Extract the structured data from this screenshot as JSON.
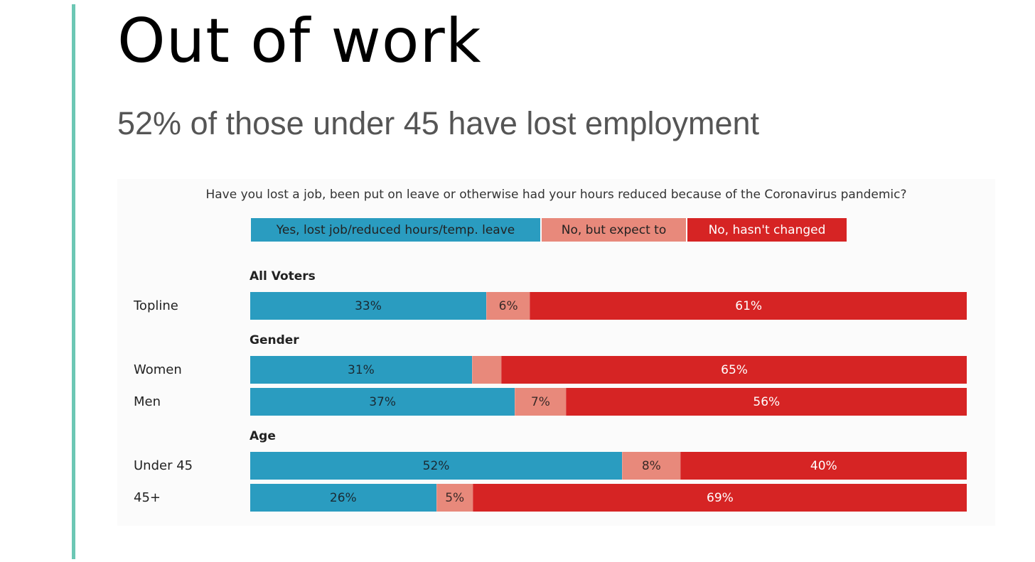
{
  "title": "Out of work",
  "subtitle": "52% of those under 45 have lost employment",
  "colors": {
    "accent_rule": "#6cc7b4",
    "yes": "#2a9cc0",
    "expect": "#e8897b",
    "no": "#d62424"
  },
  "chart_data": {
    "type": "bar",
    "orientation": "horizontal-stacked-100",
    "title": "Have you lost a job, been put on leave or otherwise had your hours reduced because of the Coronavirus pandemic?",
    "legend": [
      "Yes, lost job/reduced hours/temp. leave",
      "No, but expect to",
      "No, hasn't changed"
    ],
    "legend_placement": "top",
    "groups": [
      {
        "name": "All Voters",
        "rows": [
          {
            "label": "Topline",
            "values": [
              33,
              6,
              61
            ],
            "labels": [
              "33%",
              "6%",
              "61%"
            ]
          }
        ]
      },
      {
        "name": "Gender",
        "rows": [
          {
            "label": "Women",
            "values": [
              31,
              4,
              65
            ],
            "labels": [
              "31%",
              "",
              "65%"
            ]
          },
          {
            "label": "Men",
            "values": [
              37,
              7,
              56
            ],
            "labels": [
              "37%",
              "7%",
              "56%"
            ]
          }
        ]
      },
      {
        "name": "Age",
        "rows": [
          {
            "label": "Under 45",
            "values": [
              52,
              8,
              40
            ],
            "labels": [
              "52%",
              "8%",
              "40%"
            ]
          },
          {
            "label": "45+",
            "values": [
              26,
              5,
              69
            ],
            "labels": [
              "26%",
              "5%",
              "69%"
            ]
          }
        ]
      }
    ]
  }
}
